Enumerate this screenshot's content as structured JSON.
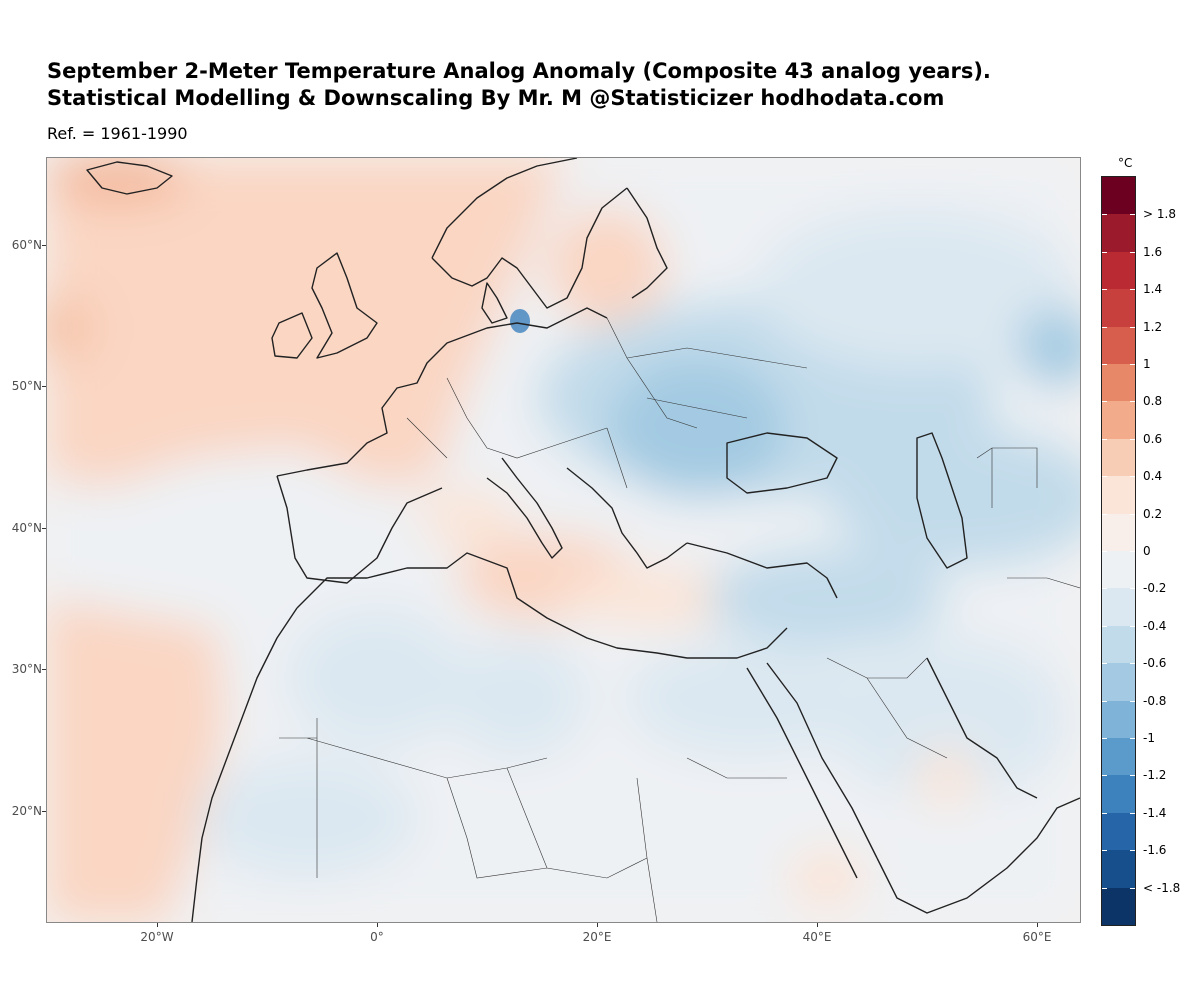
{
  "title_line1": "September 2-Meter Temperature Analog Anomaly (Composite 43 analog years).",
  "title_line2": "Statistical Modelling & Downscaling By Mr. M @Statisticizer hodhodata.com",
  "subtitle": "Ref. = 1961-1990",
  "map": {
    "region": "Europe, North Africa and Middle East",
    "lon_range": [
      -30,
      64
    ],
    "lat_range": [
      12,
      66
    ],
    "y_axis": [
      {
        "lat": 60,
        "label": "60°N"
      },
      {
        "lat": 50,
        "label": "50°N"
      },
      {
        "lat": 40,
        "label": "40°N"
      },
      {
        "lat": 30,
        "label": "30°N"
      },
      {
        "lat": 20,
        "label": "20°N"
      }
    ],
    "x_axis": [
      {
        "lon": -20,
        "label": "20°W"
      },
      {
        "lon": 0,
        "label": "0°"
      },
      {
        "lon": 20,
        "label": "20°E"
      },
      {
        "lon": 40,
        "label": "40°E"
      },
      {
        "lon": 60,
        "label": "60°E"
      }
    ]
  },
  "legend": {
    "unit": "°C",
    "labels": [
      "> 1.8",
      "1.6",
      "1.4",
      "1.2",
      "1",
      "0.8",
      "0.6",
      "0.4",
      "0.2",
      "0",
      "-0.2",
      "-0.4",
      "-0.6",
      "-0.8",
      "-1",
      "-1.2",
      "-1.4",
      "-1.6",
      "< -1.8"
    ],
    "colors": [
      "#6b0020",
      "#9b1a2c",
      "#b92a32",
      "#c8403d",
      "#d75e4d",
      "#e78868",
      "#f2ac8b",
      "#f8cdb5",
      "#fbe5d8",
      "#f9efea",
      "#eef1f4",
      "#dce8f1",
      "#c2dbea",
      "#a3cae2",
      "#7fb3d8",
      "#5b9bcb",
      "#3d82bd",
      "#2666a8",
      "#174f8c",
      "#0d3467"
    ]
  }
}
